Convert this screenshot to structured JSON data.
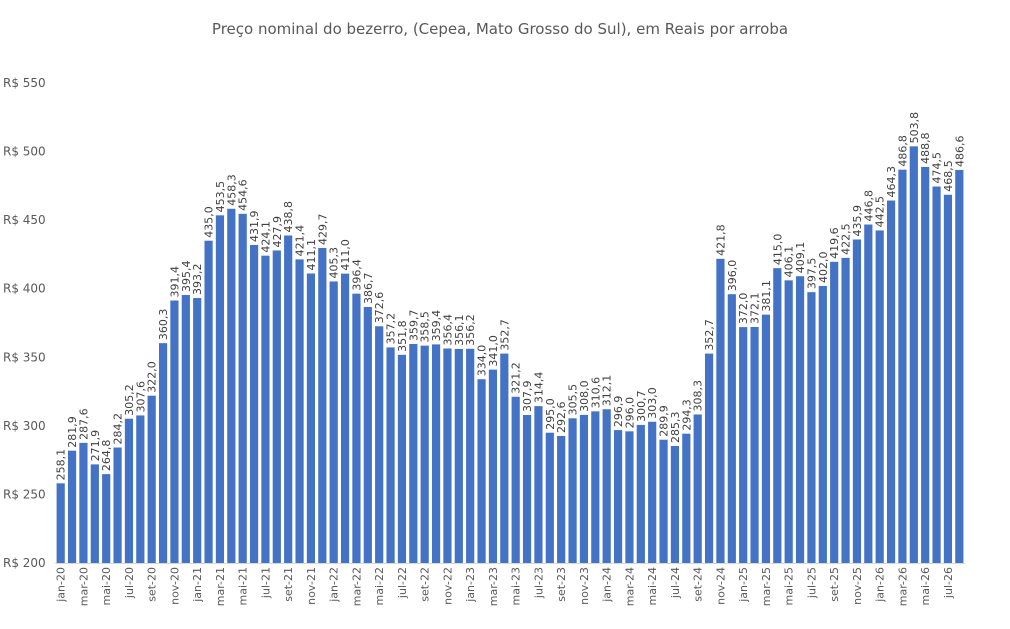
{
  "chart_data": {
    "type": "bar",
    "title": "Preço nominal do bezerro, (Cepea, Mato Grosso do Sul), em Reais por arroba",
    "xlabel": "",
    "ylabel": "",
    "ylim": [
      200,
      550
    ],
    "yticks": [
      200,
      250,
      300,
      350,
      400,
      450,
      500,
      550
    ],
    "ytick_labels": [
      "R$ 200",
      "R$ 250",
      "R$ 300",
      "R$ 350",
      "R$ 400",
      "R$ 450",
      "R$ 500",
      "R$ 550"
    ],
    "bar_color": "#4472C4",
    "grid": false,
    "categories": [
      "jan-20",
      "fev-20",
      "mar-20",
      "abr-20",
      "mai-20",
      "jun-20",
      "jul-20",
      "ago-20",
      "set-20",
      "out-20",
      "nov-20",
      "dez-20",
      "jan-21",
      "fev-21",
      "mar-21",
      "abr-21",
      "mai-21",
      "jun-21",
      "jul-21",
      "ago-21",
      "set-21",
      "out-21",
      "nov-21",
      "dez-21",
      "jan-22",
      "fev-22",
      "mar-22",
      "abr-22",
      "mai-22",
      "jun-22",
      "jul-22",
      "ago-22",
      "set-22",
      "out-22",
      "nov-22",
      "dez-22",
      "jan-23",
      "fev-23",
      "mar-23",
      "abr-23",
      "mai-23",
      "jun-23",
      "jul-23",
      "ago-23",
      "set-23",
      "out-23",
      "nov-23",
      "dez-23",
      "jan-24",
      "fev-24",
      "mar-24",
      "abr-24",
      "mai-24",
      "jun-24",
      "jul-24",
      "ago-24",
      "set-24",
      "out-24",
      "nov-24",
      "dez-24",
      "jan-25",
      "fev-25",
      "mar-25",
      "abr-25",
      "mai-25",
      "jun-25",
      "jul-25",
      "ago-25",
      "set-25",
      "out-25",
      "nov-25",
      "dez-25",
      "jan-26",
      "fev-26",
      "mar-26",
      "abr-26",
      "mai-26",
      "jun-26",
      "jul-26",
      "ago-26"
    ],
    "tick_labels_shown": [
      "jan-20",
      "mar-20",
      "mai-20",
      "jul-20",
      "set-20",
      "nov-20",
      "jan-21",
      "mar-21",
      "mai-21",
      "jul-21",
      "set-21",
      "nov-21",
      "jan-22",
      "mar-22",
      "mai-22",
      "jul-22",
      "set-22",
      "nov-22",
      "jan-23",
      "mar-23",
      "mai-23",
      "jul-23",
      "set-23",
      "nov-23",
      "jan-24",
      "mar-24",
      "mai-24",
      "jul-24",
      "set-24",
      "nov-24",
      "jan-25",
      "mar-25",
      "mai-25",
      "jul-25",
      "set-25",
      "nov-25",
      "jan-26",
      "mar-26",
      "mai-26",
      "jul-26"
    ],
    "values": [
      258.1,
      281.9,
      287.6,
      271.9,
      264.8,
      284.2,
      305.2,
      307.6,
      322.0,
      360.3,
      391.4,
      395.4,
      393.2,
      435.0,
      453.5,
      458.3,
      454.6,
      431.9,
      424.1,
      427.9,
      438.8,
      421.4,
      411.1,
      429.7,
      405.3,
      411.0,
      396.4,
      386.7,
      372.6,
      357.2,
      351.8,
      359.7,
      358.5,
      359.4,
      356.4,
      356.1,
      356.2,
      334.0,
      341.0,
      352.7,
      321.2,
      307.9,
      314.4,
      295.0,
      292.6,
      305.5,
      308.0,
      310.6,
      312.1,
      296.9,
      296.0,
      300.7,
      303.0,
      289.9,
      285.3,
      294.3,
      308.3,
      352.7,
      421.8,
      396.0,
      372.0,
      372.1,
      381.1,
      415.0,
      406.1,
      409.1,
      397.5,
      402.0,
      419.6,
      422.5,
      435.9,
      446.8,
      442.5,
      464.3,
      486.8,
      503.8,
      488.8,
      474.5,
      468.5,
      486.6
    ],
    "value_labels": [
      "258,1",
      "281,9",
      "287,6",
      "271,9",
      "264,8",
      "284,2",
      "305,2",
      "307,6",
      "322,0",
      "360,3",
      "391,4",
      "395,4",
      "393,2",
      "435,0",
      "453,5",
      "458,3",
      "454,6",
      "431,9",
      "424,1",
      "427,9",
      "438,8",
      "421,4",
      "411,1",
      "429,7",
      "405,3",
      "411,0",
      "396,4",
      "386,7",
      "372,6",
      "357,2",
      "351,8",
      "359,7",
      "358,5",
      "359,4",
      "356,4",
      "356,1",
      "356,2",
      "334,0",
      "341,0",
      "352,7",
      "321,2",
      "307,9",
      "314,4",
      "295,0",
      "292,6",
      "305,5",
      "308,0",
      "310,6",
      "312,1",
      "296,9",
      "296,0",
      "300,7",
      "303,0",
      "289,9",
      "285,3",
      "294,3",
      "308,3",
      "352,7",
      "421,8",
      "396,0",
      "372,0",
      "372,1",
      "381,1",
      "415,0",
      "406,1",
      "409,1",
      "397,5",
      "402,0",
      "419,6",
      "422,5",
      "435,9",
      "446,8",
      "442,5",
      "464,3",
      "486,8",
      "503,8",
      "488,8",
      "474,5",
      "468,5",
      "486,6"
    ]
  }
}
